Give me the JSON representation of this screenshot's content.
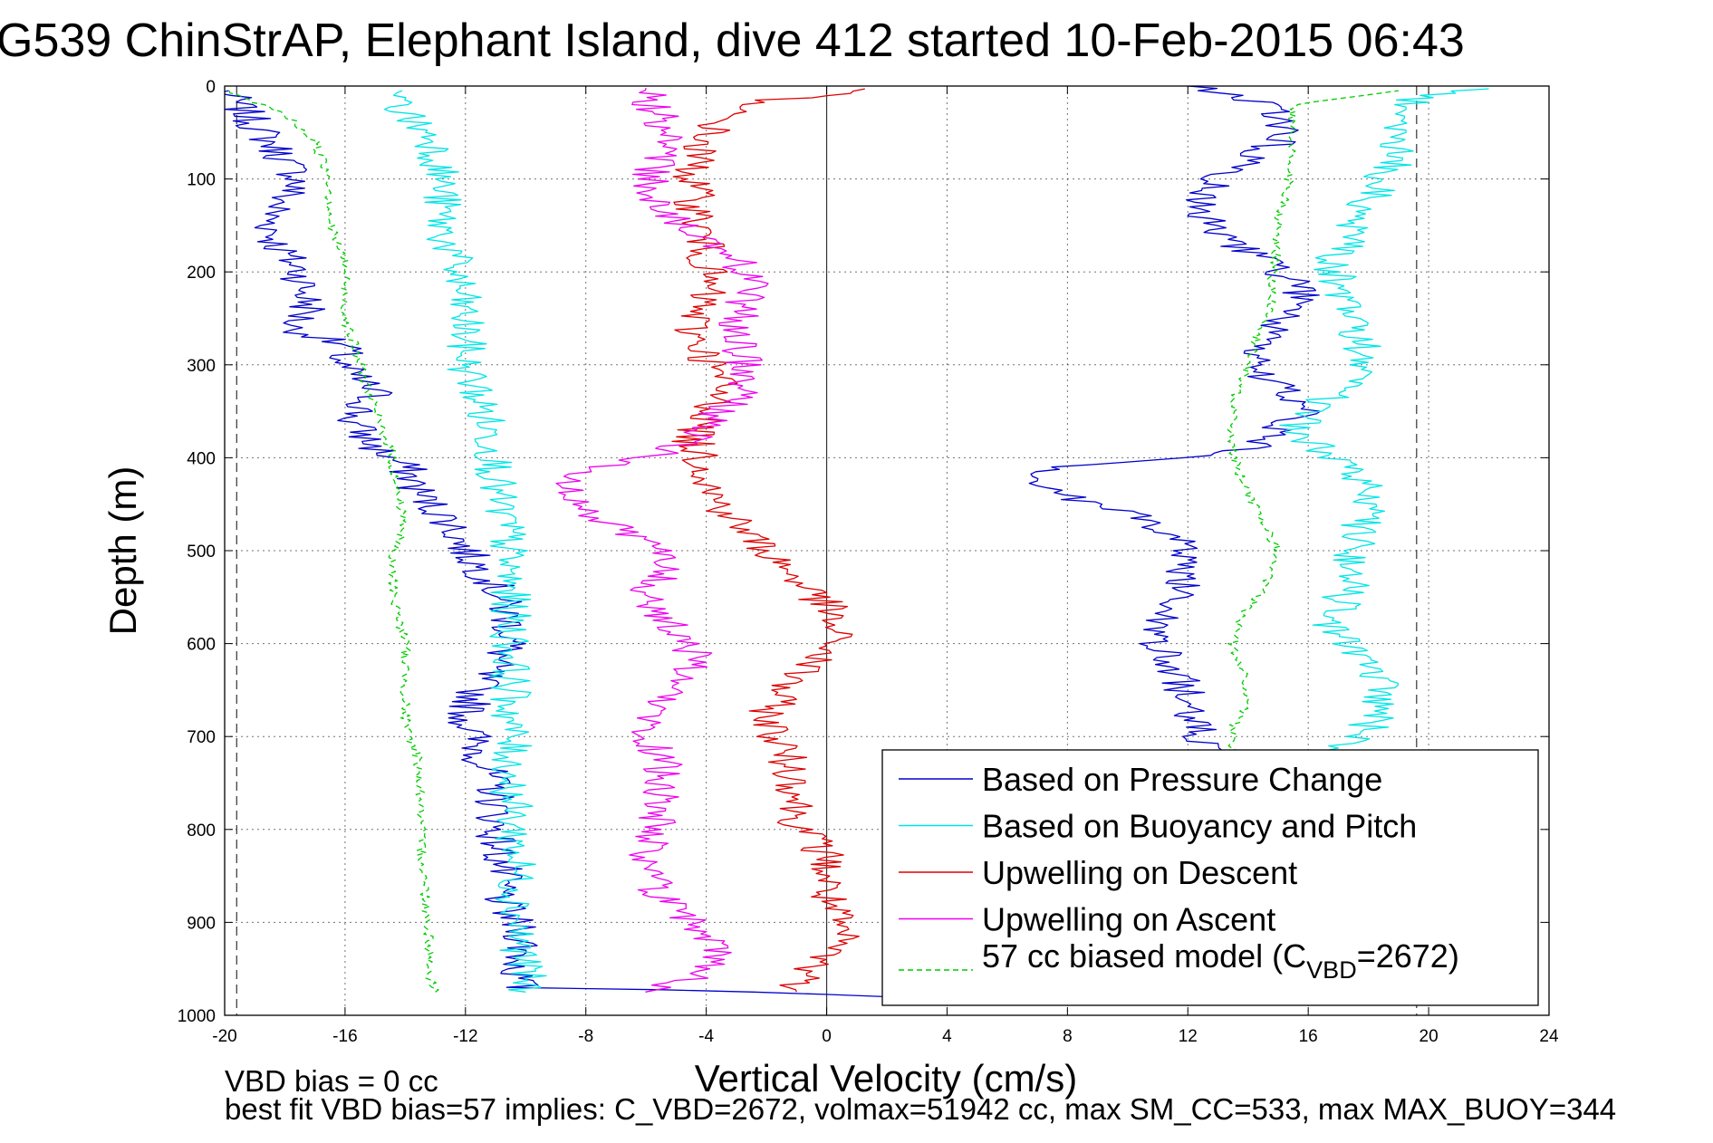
{
  "chart_data": {
    "type": "line",
    "title": "G539 ChinStrAP, Elephant Island, dive 412 started 10-Feb-2015 06:43",
    "xlabel": "Vertical Velocity (cm/s)",
    "ylabel": "Depth (m)",
    "xlim": [
      -20,
      24
    ],
    "ylim": [
      0,
      1000
    ],
    "y_reversed": true,
    "grid": true,
    "legend_position": "bottom-right",
    "x_ticks": [
      "-20",
      "-16",
      "-12",
      "-8",
      "-4",
      "0",
      "4",
      "8",
      "12",
      "16",
      "20",
      "24"
    ],
    "y_ticks": [
      "0",
      "100",
      "200",
      "300",
      "400",
      "500",
      "600",
      "700",
      "800",
      "900",
      "1000"
    ],
    "reference_lines": [
      -19.6,
      0,
      19.6
    ],
    "series": [
      {
        "name": "Based on Pressure Change",
        "color": "#0000cc",
        "style": "solid",
        "descent": [
          [
            -20,
            5
          ],
          [
            -19.3,
            30
          ],
          [
            -18.5,
            60
          ],
          [
            -17.5,
            100
          ],
          [
            -18.5,
            140
          ],
          [
            -18.3,
            170
          ],
          [
            -17.5,
            200
          ],
          [
            -17.2,
            240
          ],
          [
            -17.8,
            260
          ],
          [
            -16,
            280
          ],
          [
            -16.2,
            300
          ],
          [
            -15,
            330
          ],
          [
            -15.8,
            360
          ],
          [
            -15,
            390
          ],
          [
            -14,
            410
          ],
          [
            -13.5,
            440
          ],
          [
            -12.5,
            470
          ],
          [
            -12,
            500
          ],
          [
            -11,
            540
          ],
          [
            -10.5,
            580
          ],
          [
            -10.5,
            600
          ],
          [
            -11.5,
            640
          ],
          [
            -12,
            680
          ],
          [
            -11.5,
            720
          ],
          [
            -11,
            760
          ],
          [
            -11,
            800
          ],
          [
            -10.8,
            840
          ],
          [
            -10.8,
            880
          ],
          [
            -10,
            920
          ],
          [
            -10.3,
            950
          ],
          [
            -10.2,
            970
          ],
          [
            -2,
            975
          ],
          [
            2,
            980
          ]
        ],
        "ascent": [
          [
            14,
            980
          ],
          [
            13,
            960
          ],
          [
            13,
            920
          ],
          [
            13,
            880
          ],
          [
            13,
            840
          ],
          [
            13,
            800
          ],
          [
            12.5,
            760
          ],
          [
            13,
            720
          ],
          [
            12,
            680
          ],
          [
            11.8,
            640
          ],
          [
            11,
            600
          ],
          [
            11.5,
            560
          ],
          [
            12,
            520
          ],
          [
            11.5,
            480
          ],
          [
            10,
            460
          ],
          [
            8,
            440
          ],
          [
            7,
            420
          ],
          [
            8,
            410
          ],
          [
            12,
            400
          ],
          [
            14,
            390
          ],
          [
            15,
            370
          ],
          [
            16,
            350
          ],
          [
            15.5,
            330
          ],
          [
            14.5,
            310
          ],
          [
            14.5,
            290
          ],
          [
            14.8,
            270
          ],
          [
            15,
            250
          ],
          [
            16,
            230
          ],
          [
            15.2,
            200
          ],
          [
            14,
            180
          ],
          [
            13,
            160
          ],
          [
            12.5,
            140
          ],
          [
            12.5,
            120
          ],
          [
            13,
            100
          ],
          [
            14,
            80
          ],
          [
            15,
            60
          ],
          [
            15.2,
            40
          ],
          [
            14.5,
            20
          ],
          [
            13,
            5
          ],
          [
            12,
            0
          ]
        ]
      },
      {
        "name": "Based on Buoyancy and Pitch",
        "color": "#00e5e5",
        "style": "solid",
        "descent": [
          [
            -14.5,
            5
          ],
          [
            -14,
            30
          ],
          [
            -13,
            60
          ],
          [
            -12.8,
            100
          ],
          [
            -12.8,
            150
          ],
          [
            -12.3,
            200
          ],
          [
            -12,
            260
          ],
          [
            -12,
            300
          ],
          [
            -11.5,
            340
          ],
          [
            -11,
            400
          ],
          [
            -11,
            440
          ],
          [
            -10.6,
            480
          ],
          [
            -10.6,
            520
          ],
          [
            -10.5,
            560
          ],
          [
            -10.5,
            600
          ],
          [
            -10.5,
            640
          ],
          [
            -10.5,
            680
          ],
          [
            -10.5,
            720
          ],
          [
            -10.5,
            760
          ],
          [
            -10.4,
            800
          ],
          [
            -10.3,
            840
          ],
          [
            -10.3,
            880
          ],
          [
            -10.2,
            920
          ],
          [
            -10,
            960
          ],
          [
            -10,
            975
          ]
        ],
        "ascent": [
          [
            17,
            720
          ],
          [
            18,
            690
          ],
          [
            18.5,
            660
          ],
          [
            18,
            620
          ],
          [
            17.5,
            600
          ],
          [
            16.5,
            580
          ],
          [
            17,
            560
          ],
          [
            17.5,
            530
          ],
          [
            17.5,
            500
          ],
          [
            17.8,
            470
          ],
          [
            18,
            440
          ],
          [
            17.5,
            410
          ],
          [
            16.5,
            390
          ],
          [
            15.5,
            370
          ],
          [
            16.5,
            340
          ],
          [
            17.5,
            310
          ],
          [
            17.8,
            280
          ],
          [
            17.5,
            250
          ],
          [
            17,
            220
          ],
          [
            16.8,
            190
          ],
          [
            17.5,
            160
          ],
          [
            17.8,
            130
          ],
          [
            18.5,
            100
          ],
          [
            19,
            70
          ],
          [
            19,
            40
          ],
          [
            19.5,
            10
          ],
          [
            22,
            3
          ]
        ]
      },
      {
        "name": "Upwelling on Descent",
        "color": "#dd0000",
        "style": "solid",
        "descent": [
          [
            1.5,
            3
          ],
          [
            -3,
            20
          ],
          [
            -4.2,
            60
          ],
          [
            -4.5,
            100
          ],
          [
            -4.3,
            140
          ],
          [
            -4,
            180
          ],
          [
            -4,
            220
          ],
          [
            -4.5,
            260
          ],
          [
            -4,
            290
          ],
          [
            -3.5,
            320
          ],
          [
            -3.8,
            350
          ],
          [
            -4.5,
            380
          ],
          [
            -4,
            410
          ],
          [
            -3.8,
            440
          ],
          [
            -3,
            470
          ],
          [
            -2,
            500
          ],
          [
            -1,
            530
          ],
          [
            0,
            560
          ],
          [
            0.3,
            600
          ],
          [
            -0.5,
            620
          ],
          [
            -1.5,
            650
          ],
          [
            -2,
            680
          ],
          [
            -1.5,
            710
          ],
          [
            -1,
            750
          ],
          [
            -1,
            790
          ],
          [
            0,
            830
          ],
          [
            0,
            870
          ],
          [
            0.3,
            900
          ],
          [
            0.5,
            920
          ],
          [
            -0.5,
            950
          ],
          [
            -1,
            975
          ]
        ]
      },
      {
        "name": "Upwelling on Ascent",
        "color": "#ee00ee",
        "style": "solid",
        "ascent": [
          [
            -6.5,
            975
          ],
          [
            -4,
            960
          ],
          [
            -3.5,
            930
          ],
          [
            -4.5,
            900
          ],
          [
            -5.5,
            870
          ],
          [
            -6,
            840
          ],
          [
            -5.8,
            810
          ],
          [
            -5.5,
            780
          ],
          [
            -5.5,
            750
          ],
          [
            -5.5,
            720
          ],
          [
            -6,
            690
          ],
          [
            -5.5,
            660
          ],
          [
            -4.5,
            630
          ],
          [
            -4.5,
            600
          ],
          [
            -5.5,
            570
          ],
          [
            -6,
            540
          ],
          [
            -5,
            510
          ],
          [
            -6,
            490
          ],
          [
            -7.5,
            470
          ],
          [
            -8.5,
            440
          ],
          [
            -8.5,
            420
          ],
          [
            -6,
            400
          ],
          [
            -4.5,
            380
          ],
          [
            -4,
            360
          ],
          [
            -3,
            340
          ],
          [
            -2.5,
            310
          ],
          [
            -3,
            280
          ],
          [
            -3,
            250
          ],
          [
            -2.5,
            220
          ],
          [
            -3,
            190
          ],
          [
            -4.5,
            160
          ],
          [
            -5.5,
            130
          ],
          [
            -6,
            100
          ],
          [
            -5.5,
            70
          ],
          [
            -5.5,
            40
          ],
          [
            -5.8,
            20
          ],
          [
            -6,
            2
          ]
        ]
      },
      {
        "name": "57 cc biased model (C",
        "name_sub": "VBD",
        "name_suffix": "=2672)",
        "color": "#00cc00",
        "style": "dashed",
        "descent": [
          [
            -20,
            5
          ],
          [
            -18,
            30
          ],
          [
            -17,
            60
          ],
          [
            -16.5,
            100
          ],
          [
            -16.5,
            150
          ],
          [
            -16,
            190
          ],
          [
            -16,
            250
          ],
          [
            -15.5,
            300
          ],
          [
            -15,
            350
          ],
          [
            -14.5,
            390
          ],
          [
            -14.3,
            430
          ],
          [
            -14,
            470
          ],
          [
            -14.5,
            510
          ],
          [
            -14.3,
            560
          ],
          [
            -14,
            600
          ],
          [
            -14,
            650
          ],
          [
            -14,
            690
          ],
          [
            -13.6,
            720
          ],
          [
            -13.5,
            760
          ],
          [
            -13.5,
            800
          ],
          [
            -13.4,
            840
          ],
          [
            -13.3,
            880
          ],
          [
            -13.2,
            920
          ],
          [
            -13.2,
            960
          ],
          [
            -13,
            975
          ]
        ],
        "ascent": [
          [
            13.5,
            720
          ],
          [
            13.5,
            690
          ],
          [
            14,
            660
          ],
          [
            13.8,
            630
          ],
          [
            13.5,
            600
          ],
          [
            13.8,
            570
          ],
          [
            14.5,
            540
          ],
          [
            15,
            500
          ],
          [
            14.5,
            470
          ],
          [
            14,
            440
          ],
          [
            13.6,
            410
          ],
          [
            13.5,
            380
          ],
          [
            13.5,
            340
          ],
          [
            14,
            300
          ],
          [
            14.3,
            270
          ],
          [
            14.8,
            240
          ],
          [
            14.8,
            200
          ],
          [
            15,
            170
          ],
          [
            15,
            140
          ],
          [
            15.3,
            110
          ],
          [
            15.5,
            80
          ],
          [
            15.5,
            50
          ],
          [
            15.5,
            20
          ],
          [
            19,
            5
          ]
        ]
      }
    ]
  },
  "annotations": {
    "vbd_bias": "VBD bias = 0 cc",
    "best_fit": "best fit VBD bias=57 implies: C_VBD=2672, volmax=51942 cc, max SM_CC=533, max MAX_BUOY=344"
  }
}
